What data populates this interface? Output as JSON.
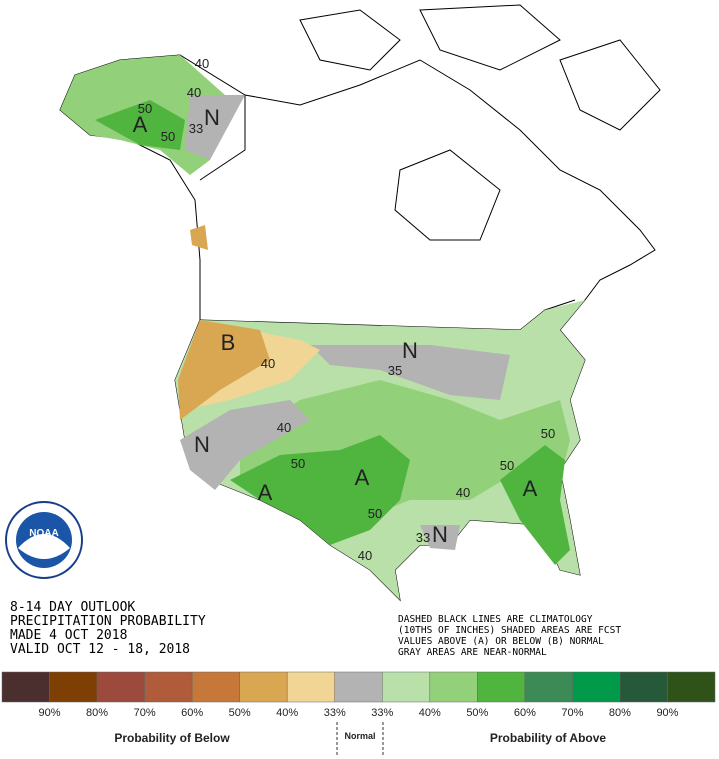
{
  "outlook": {
    "lines": [
      "8-14 DAY OUTLOOK",
      "PRECIPITATION PROBABILITY",
      "MADE  4 OCT 2018",
      "VALID  OCT 12 - 18, 2018"
    ]
  },
  "note": {
    "lines": [
      "DASHED BLACK LINES ARE CLIMATOLOGY",
      "(10THS OF INCHES) SHADED AREAS ARE FCST",
      "VALUES ABOVE (A) OR BELOW (B) NORMAL",
      "GRAY AREAS ARE NEAR-NORMAL"
    ]
  },
  "logo": {
    "text": "NOAA"
  },
  "map_labels": [
    "40",
    "40",
    "50",
    "A",
    "N",
    "33",
    "50",
    "B",
    "40",
    "35",
    "N",
    "N",
    "40",
    "50",
    "A",
    "A",
    "50",
    "40",
    "33",
    "N",
    "40",
    "50",
    "50",
    "A"
  ],
  "legend": {
    "colors": [
      "#4b2f2f",
      "#7e3f04",
      "#9b4a3c",
      "#b05c3a",
      "#c6783a",
      "#d9a752",
      "#f1d594",
      "#b3b3b3",
      "#b9e0a8",
      "#92d07a",
      "#4fb53f",
      "#3c8b57",
      "#019a4b",
      "#26593a",
      "#2f5219"
    ],
    "labels": [
      "90%",
      "80%",
      "70%",
      "60%",
      "50%",
      "40%",
      "33%",
      "33%",
      "40%",
      "50%",
      "60%",
      "70%",
      "80%",
      "90%"
    ],
    "below_title": "Probability of Below",
    "normal_title": "Normal",
    "above_title": "Probability of Above"
  }
}
